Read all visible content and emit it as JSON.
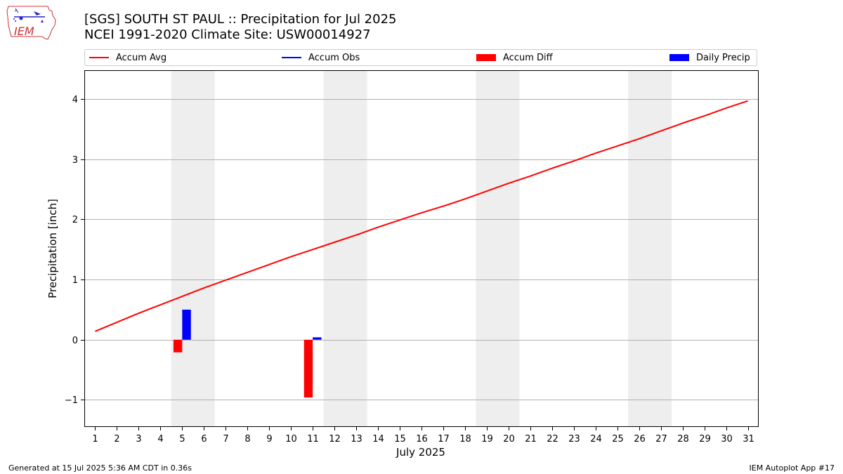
{
  "header": {
    "title_line1": "[SGS] SOUTH ST PAUL :: Precipitation for Jul 2025",
    "title_line2": "NCEI 1991-2020 Climate Site: USW00014927",
    "logo_text": "IEM"
  },
  "legend": {
    "items": [
      {
        "label": "Accum Avg",
        "kind": "line",
        "color": "#ff0000"
      },
      {
        "label": "Accum Obs",
        "kind": "line",
        "color": "#0000ff"
      },
      {
        "label": "Accum Diff",
        "kind": "patch",
        "color": "#ff0000"
      },
      {
        "label": "Daily Precip",
        "kind": "patch",
        "color": "#0000ff"
      }
    ]
  },
  "footer": {
    "generated": "Generated at 15 Jul 2025 5:36 AM CDT in 0.36s",
    "app": "IEM Autoplot App #17"
  },
  "chart_data": {
    "type": "bar",
    "xlabel": "July 2025",
    "ylabel": "Precipitation [inch]",
    "xlim": [
      0.5,
      31.5
    ],
    "ylim": [
      -1.45,
      4.48
    ],
    "yticks": [
      -1,
      0,
      1,
      2,
      3,
      4
    ],
    "ytick_labels": [
      "−1",
      "0",
      "1",
      "2",
      "3",
      "4"
    ],
    "days": [
      1,
      2,
      3,
      4,
      5,
      6,
      7,
      8,
      9,
      10,
      11,
      12,
      13,
      14,
      15,
      16,
      17,
      18,
      19,
      20,
      21,
      22,
      23,
      24,
      25,
      26,
      27,
      28,
      29,
      30,
      31
    ],
    "weekend_bands": [
      [
        4.5,
        6.5
      ],
      [
        11.5,
        13.5
      ],
      [
        18.5,
        20.5
      ],
      [
        25.5,
        27.5
      ]
    ],
    "grid": "y",
    "legend_position": "top",
    "series": [
      {
        "name": "Accum Avg",
        "kind": "line",
        "color": "#ff0000",
        "values": [
          0.14,
          0.29,
          0.44,
          0.58,
          0.72,
          0.86,
          0.99,
          1.12,
          1.25,
          1.38,
          1.5,
          1.62,
          1.74,
          1.87,
          1.99,
          2.11,
          2.22,
          2.34,
          2.47,
          2.6,
          2.72,
          2.85,
          2.97,
          3.1,
          3.22,
          3.34,
          3.47,
          3.6,
          3.72,
          3.85,
          3.97
        ]
      },
      {
        "name": "Accum Obs",
        "kind": "line",
        "color": "#0000ff",
        "values": []
      },
      {
        "name": "Accum Diff",
        "kind": "bar",
        "color": "#ff0000",
        "offset": -0.2,
        "points": [
          {
            "day": 5,
            "value": -0.21
          },
          {
            "day": 11,
            "value": -0.96
          }
        ]
      },
      {
        "name": "Daily Precip",
        "kind": "bar",
        "color": "#0000ff",
        "offset": 0.2,
        "points": [
          {
            "day": 5,
            "value": 0.5
          },
          {
            "day": 11,
            "value": 0.04
          }
        ]
      }
    ]
  }
}
